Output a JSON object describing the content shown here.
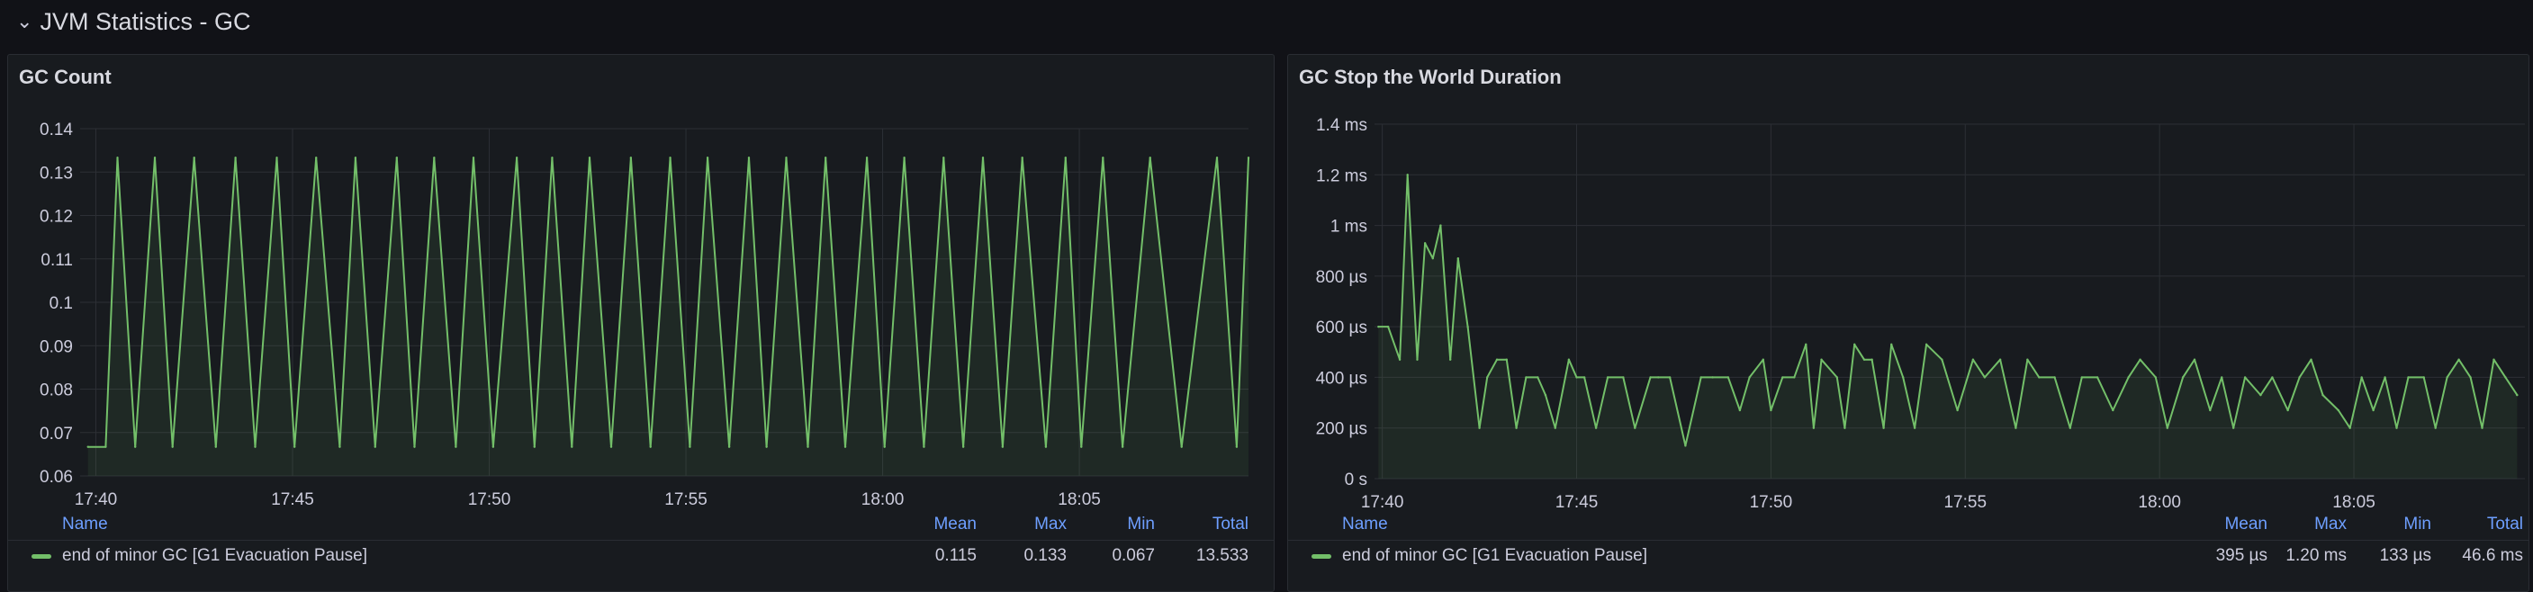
{
  "row": {
    "chevron": "chevron-down-icon",
    "title": "JVM Statistics - GC"
  },
  "colors": {
    "series": "#73bf69",
    "fill": "#73bf69",
    "grid": "#2c2f35",
    "legend_header": "#6e9fff"
  },
  "panels": [
    {
      "title": "GC Count",
      "legend": {
        "headers": {
          "name": "Name",
          "mean": "Mean",
          "max": "Max",
          "min": "Min",
          "total": "Total"
        },
        "rows": [
          {
            "name": "end of minor GC [G1 Evacuation Pause]",
            "mean": "0.115",
            "max": "0.133",
            "min": "0.067",
            "total": "13.533"
          }
        ]
      }
    },
    {
      "title": "GC Stop the World Duration",
      "legend": {
        "headers": {
          "name": "Name",
          "mean": "Mean",
          "max": "Max",
          "min": "Min",
          "total": "Total"
        },
        "rows": [
          {
            "name": "end of minor GC [G1 Evacuation Pause]",
            "mean": "395 µs",
            "max": "1.20 ms",
            "min": "133 µs",
            "total": "46.6 ms"
          }
        ]
      }
    }
  ],
  "chart_data": [
    {
      "type": "area",
      "title": "GC Count",
      "x_ticks": [
        "17:40",
        "17:45",
        "17:50",
        "17:55",
        "18:00",
        "18:05"
      ],
      "x_tick_minutes": [
        0,
        5,
        10,
        15,
        20,
        25
      ],
      "xlim_minutes": [
        -0.4,
        29.3
      ],
      "y_ticks": [
        "0.06",
        "0.07",
        "0.08",
        "0.09",
        "0.1",
        "0.11",
        "0.12",
        "0.13",
        "0.14"
      ],
      "ylim": [
        0.06,
        0.14
      ],
      "series": [
        {
          "name": "end of minor GC [G1 Evacuation Pause]",
          "x": [
            -0.2,
            0.25,
            0.55,
            1.0,
            1.5,
            1.95,
            2.5,
            3.05,
            3.55,
            4.05,
            4.6,
            5.05,
            5.6,
            6.2,
            6.6,
            7.1,
            7.65,
            8.1,
            8.6,
            9.15,
            9.6,
            10.1,
            10.7,
            11.15,
            11.6,
            12.1,
            12.55,
            13.1,
            13.6,
            14.1,
            14.6,
            15.1,
            15.55,
            16.1,
            16.6,
            17.05,
            17.55,
            18.1,
            18.55,
            19.05,
            19.6,
            20.05,
            20.55,
            21.05,
            21.55,
            22.05,
            22.55,
            23.05,
            23.55,
            24.15,
            24.65,
            25.05,
            25.6,
            26.1,
            26.8,
            27.6,
            28.5,
            29.0,
            29.3
          ],
          "y": [
            0.0667,
            0.0667,
            0.1333,
            0.0667,
            0.1333,
            0.0667,
            0.1333,
            0.0667,
            0.1333,
            0.0667,
            0.1333,
            0.0667,
            0.1333,
            0.0667,
            0.1333,
            0.0667,
            0.1333,
            0.0667,
            0.1333,
            0.0667,
            0.1333,
            0.0667,
            0.1333,
            0.0667,
            0.1333,
            0.0667,
            0.1333,
            0.0667,
            0.1333,
            0.0667,
            0.1333,
            0.0667,
            0.1333,
            0.0667,
            0.1333,
            0.0667,
            0.1333,
            0.0667,
            0.1333,
            0.0667,
            0.1333,
            0.0667,
            0.1333,
            0.0667,
            0.1333,
            0.0667,
            0.1333,
            0.0667,
            0.1333,
            0.0667,
            0.1333,
            0.0667,
            0.1333,
            0.0667,
            0.1333,
            0.0667,
            0.1333,
            0.0667,
            0.1333
          ]
        }
      ]
    },
    {
      "type": "area",
      "title": "GC Stop the World Duration",
      "x_ticks": [
        "17:40",
        "17:45",
        "17:50",
        "17:55",
        "18:00",
        "18:05"
      ],
      "x_tick_minutes": [
        0,
        5,
        10,
        15,
        20,
        25
      ],
      "xlim_minutes": [
        -0.2,
        29.4
      ],
      "y_ticks": [
        "0 s",
        "200 µs",
        "400 µs",
        "600 µs",
        "800 µs",
        "1 ms",
        "1.2 ms",
        "1.4 ms"
      ],
      "ylim_us": [
        0,
        1400
      ],
      "series": [
        {
          "name": "end of minor GC [G1 Evacuation Pause]",
          "x": [
            -0.1,
            0.15,
            0.45,
            0.65,
            0.9,
            1.1,
            1.3,
            1.5,
            1.75,
            1.95,
            2.2,
            2.5,
            2.7,
            2.95,
            3.2,
            3.45,
            3.7,
            4.0,
            4.2,
            4.45,
            4.8,
            5.0,
            5.2,
            5.5,
            5.8,
            6.2,
            6.5,
            6.9,
            7.1,
            7.4,
            7.8,
            8.2,
            8.5,
            8.9,
            9.2,
            9.45,
            9.8,
            10.0,
            10.3,
            10.6,
            10.9,
            11.1,
            11.3,
            11.7,
            11.9,
            12.15,
            12.4,
            12.6,
            12.9,
            13.1,
            13.4,
            13.7,
            14.0,
            14.4,
            14.8,
            15.2,
            15.5,
            15.9,
            16.3,
            16.6,
            16.9,
            17.3,
            17.7,
            18.0,
            18.4,
            18.8,
            19.2,
            19.5,
            19.9,
            20.2,
            20.6,
            20.9,
            21.3,
            21.6,
            21.9,
            22.2,
            22.6,
            22.9,
            23.3,
            23.6,
            23.9,
            24.2,
            24.6,
            24.9,
            25.2,
            25.5,
            25.8,
            26.1,
            26.4,
            26.8,
            27.1,
            27.4,
            27.7,
            28.0,
            28.3,
            28.6,
            28.9,
            29.2
          ],
          "y": [
            600,
            600,
            470,
            1200,
            470,
            930,
            870,
            1000,
            470,
            870,
            600,
            200,
            400,
            470,
            470,
            200,
            400,
            400,
            330,
            200,
            470,
            400,
            400,
            200,
            400,
            400,
            200,
            400,
            400,
            400,
            130,
            400,
            400,
            400,
            270,
            400,
            470,
            270,
            400,
            400,
            530,
            200,
            470,
            400,
            200,
            530,
            470,
            470,
            200,
            530,
            400,
            200,
            530,
            470,
            270,
            470,
            400,
            470,
            200,
            470,
            400,
            400,
            200,
            400,
            400,
            270,
            400,
            470,
            400,
            200,
            400,
            470,
            270,
            400,
            200,
            400,
            330,
            400,
            270,
            400,
            470,
            330,
            270,
            200,
            400,
            270,
            400,
            200,
            400,
            400,
            200,
            400,
            470,
            400,
            200,
            470,
            400,
            330
          ]
        }
      ]
    }
  ]
}
